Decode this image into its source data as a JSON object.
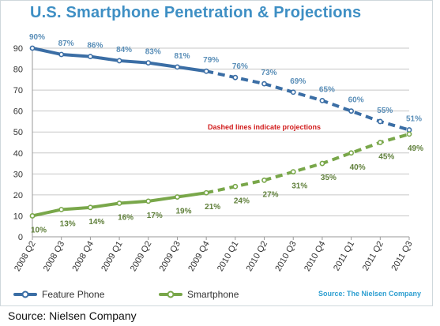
{
  "caption": "Source: Nielsen Company",
  "chart_data": {
    "type": "line",
    "title": "U.S. Smartphone Penetration & Projections",
    "categories": [
      "2008 Q2",
      "2008 Q3",
      "2008 Q4",
      "2009 Q1",
      "2009 Q2",
      "2009 Q3",
      "2009 Q4",
      "2010 Q1",
      "2010 Q2",
      "2010 Q3",
      "2010 Q4",
      "2011 Q1",
      "2011 Q2",
      "2011 Q3"
    ],
    "series": [
      {
        "name": "Feature Phone",
        "values": [
          90,
          87,
          86,
          84,
          83,
          81,
          79,
          76,
          73,
          69,
          65,
          60,
          55,
          51
        ],
        "labels": [
          "90%",
          "87%",
          "86%",
          "84%",
          "83%",
          "81%",
          "79%",
          "76%",
          "73%",
          "69%",
          "65%",
          "60%",
          "55%",
          "51%"
        ],
        "color": "#3b6ea5",
        "label_color": "#5b8fb8"
      },
      {
        "name": "Smartphone",
        "values": [
          10,
          13,
          14,
          16,
          17,
          19,
          21,
          24,
          27,
          31,
          35,
          40,
          45,
          49
        ],
        "labels": [
          "10%",
          "13%",
          "14%",
          "16%",
          "17%",
          "19%",
          "21%",
          "24%",
          "27%",
          "31%",
          "35%",
          "40%",
          "45%",
          "49%"
        ],
        "color": "#79a74a",
        "label_color": "#5f7f3a"
      }
    ],
    "projection_start_index": 6,
    "ylim": [
      0,
      90
    ],
    "yticks": [
      0,
      10,
      20,
      30,
      40,
      50,
      60,
      70,
      80,
      90
    ],
    "grid": true,
    "legend_position": "bottom-left",
    "annotation": "Dashed lines indicate projections",
    "source": "Source: The Nielsen Company"
  }
}
